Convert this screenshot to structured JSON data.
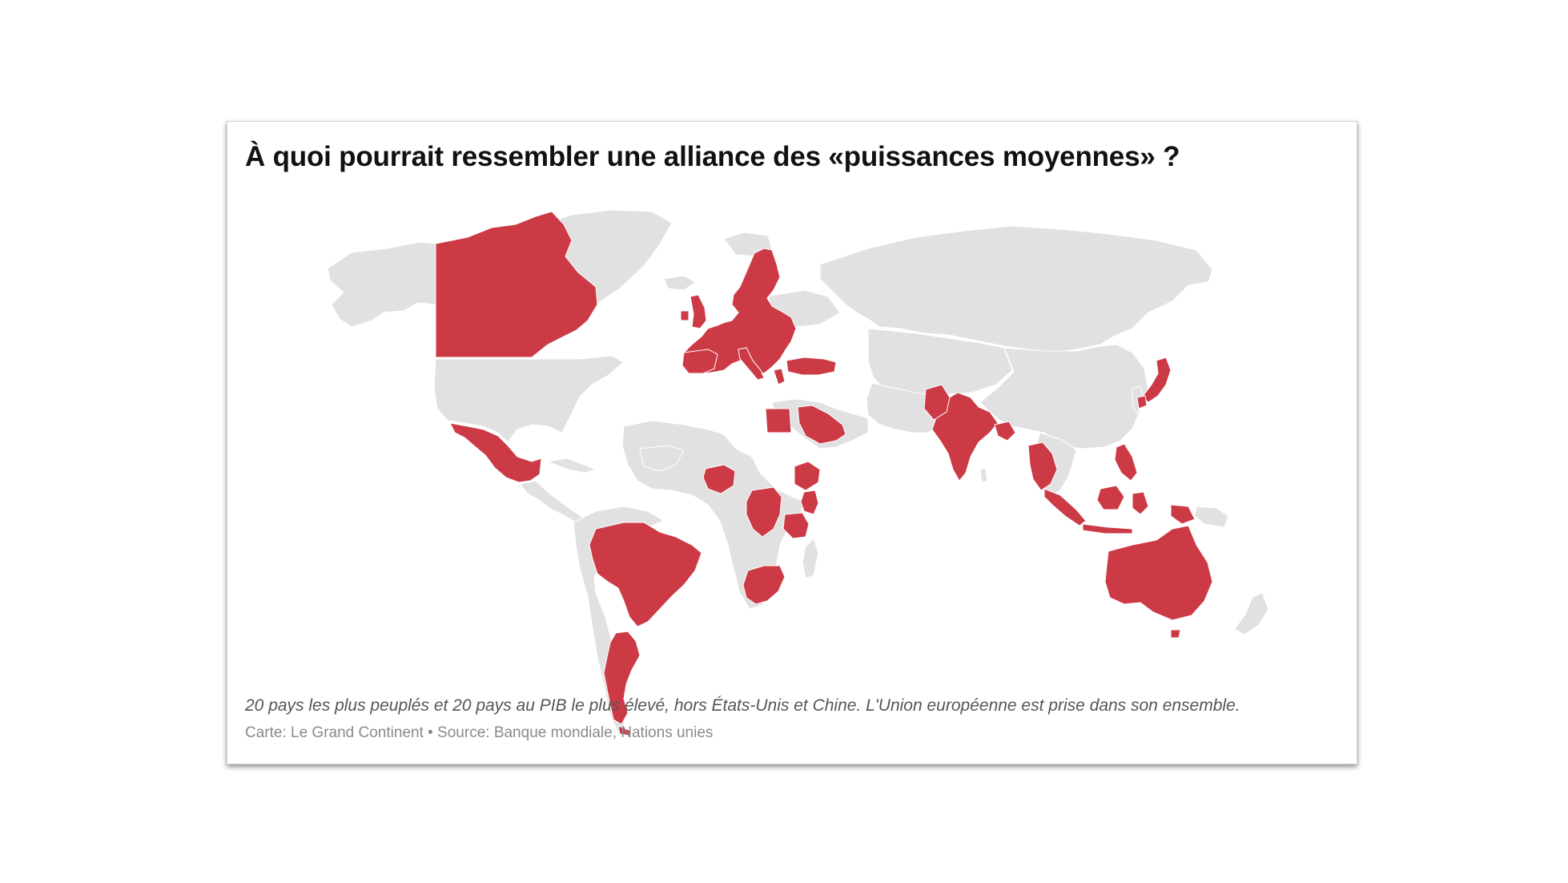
{
  "map": {
    "title": "À quoi pourrait ressembler une alliance des «puissances moyennes» ?",
    "note": "20 pays les plus peuplés et 20 pays au PIB le plus élevé, hors États-Unis et Chine. L'Union européenne est prise dans son ensemble.",
    "credit": "Carte: Le Grand Continent • Source: Banque mondiale, Nations unies",
    "colors": {
      "selected": "#cc3a45",
      "other_land": "#e1e1e1",
      "background": "#ffffff"
    }
  }
}
